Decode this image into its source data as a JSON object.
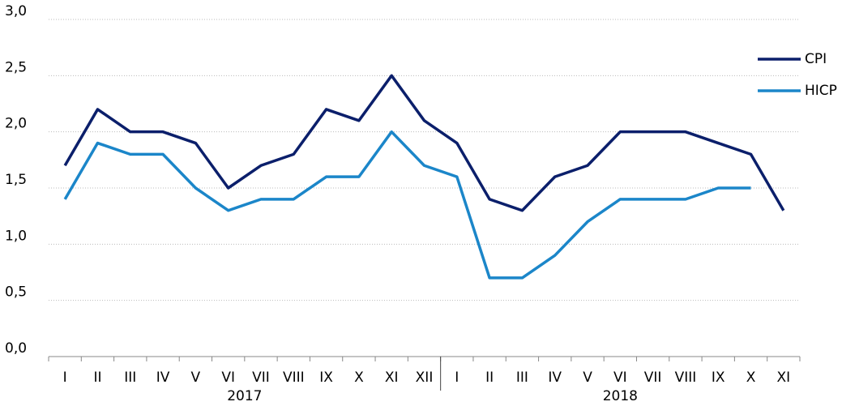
{
  "chart_data": {
    "type": "line",
    "category_groups": [
      {
        "label": "2017",
        "categories": [
          "I",
          "II",
          "III",
          "IV",
          "V",
          "VI",
          "VII",
          "VIII",
          "IX",
          "X",
          "XI",
          "XII"
        ]
      },
      {
        "label": "2018",
        "categories": [
          "I",
          "II",
          "III",
          "IV",
          "V",
          "VI",
          "VII",
          "VIII",
          "IX",
          "X",
          "XI"
        ]
      }
    ],
    "series": [
      {
        "name": "CPI",
        "color": "#0b1f6b",
        "values": [
          1.7,
          2.2,
          2.0,
          2.0,
          1.9,
          1.5,
          1.7,
          1.8,
          2.2,
          2.1,
          2.5,
          2.1,
          1.9,
          1.4,
          1.3,
          1.6,
          1.7,
          2.0,
          2.0,
          2.0,
          1.9,
          1.8,
          1.3
        ]
      },
      {
        "name": "HICP",
        "color": "#1b86c9",
        "values": [
          1.4,
          1.9,
          1.8,
          1.8,
          1.5,
          1.3,
          1.4,
          1.4,
          1.6,
          1.6,
          2.0,
          1.7,
          1.6,
          0.7,
          0.7,
          0.9,
          1.2,
          1.4,
          1.4,
          1.4,
          1.5,
          1.5,
          null
        ]
      }
    ],
    "ylim": [
      0,
      3
    ],
    "yticks": [
      {
        "value": 0,
        "label": "0,0"
      },
      {
        "value": 0.5,
        "label": "0,5"
      },
      {
        "value": 1,
        "label": "1,0"
      },
      {
        "value": 1.5,
        "label": "1,5"
      },
      {
        "value": 2,
        "label": "2,0"
      },
      {
        "value": 2.5,
        "label": "2,5"
      },
      {
        "value": 3,
        "label": "3,0"
      }
    ],
    "grid": true,
    "legend": "top-right"
  }
}
